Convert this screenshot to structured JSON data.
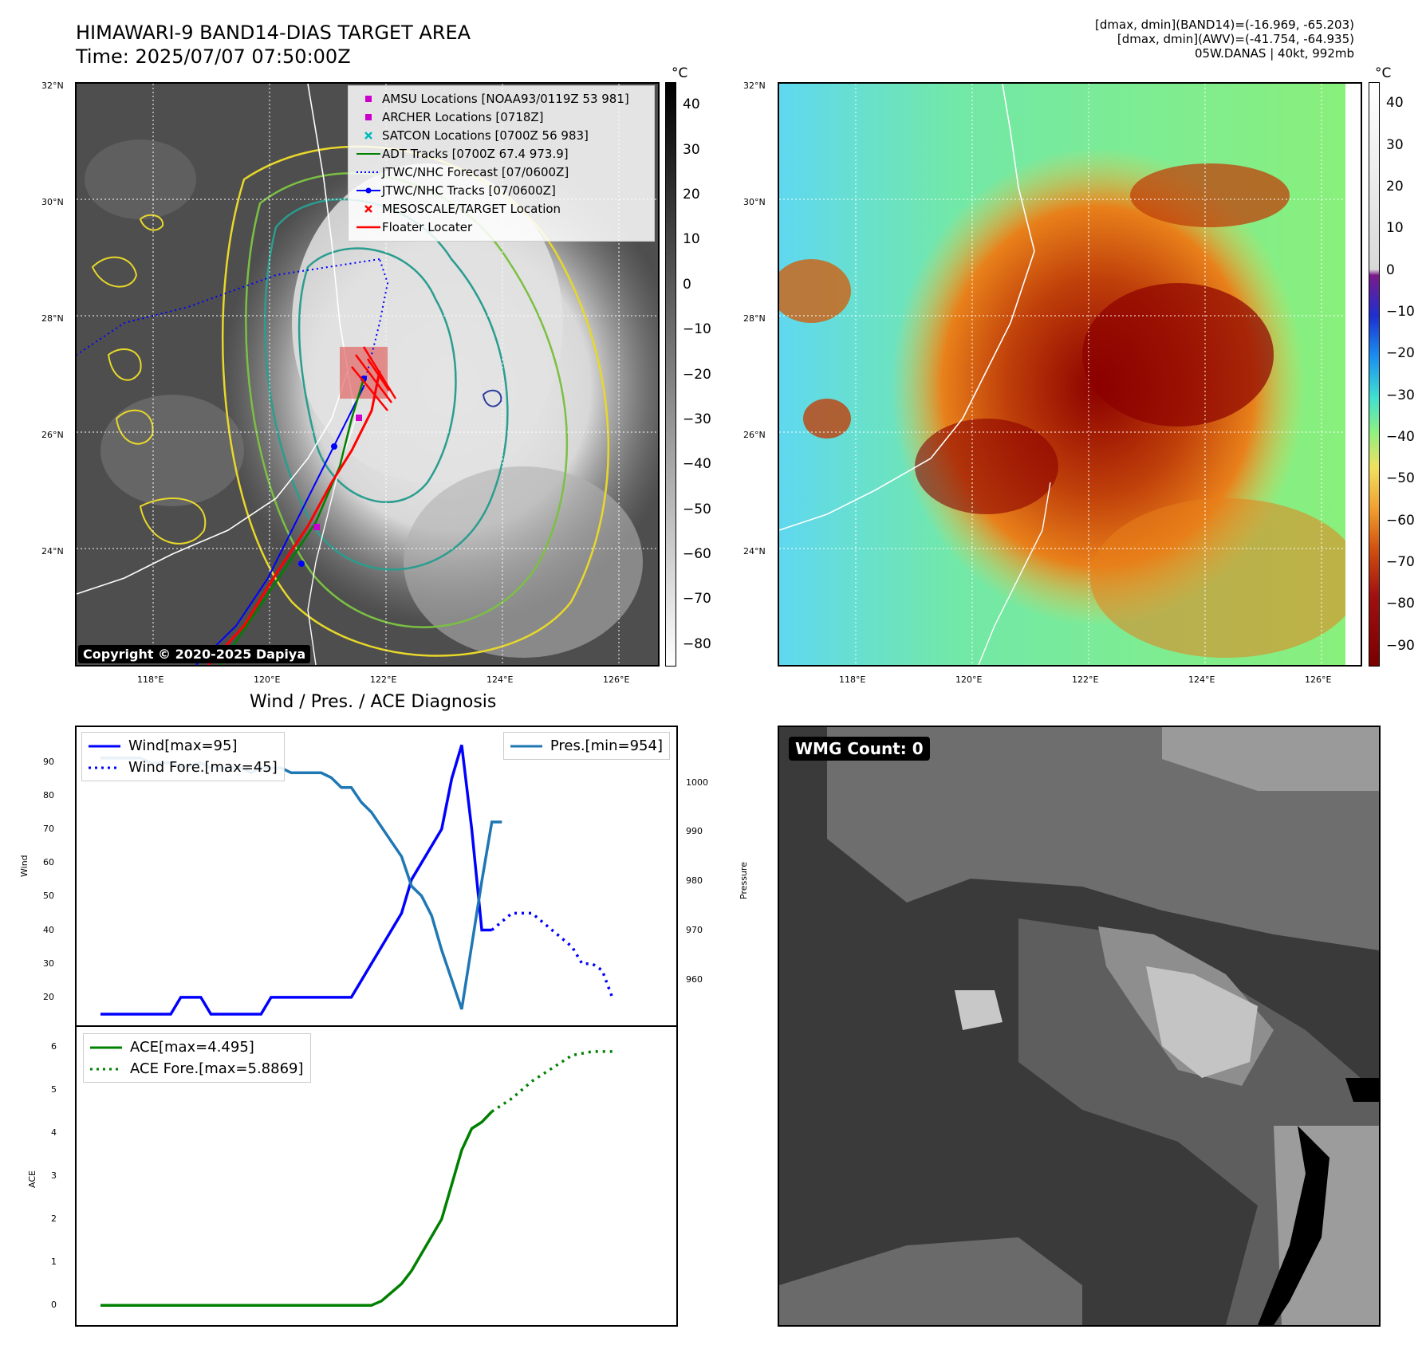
{
  "header": {
    "title_line1": "HIMAWARI-9 BAND14-DIAS TARGET AREA",
    "title_line2": "Time: 2025/07/07 07:50:00Z",
    "info_line1": "[dmax, dmin](BAND14)=(-16.969, -65.203)",
    "info_line2": "[dmax, dmin](AWV)=(-41.754, -64.935)",
    "info_line3": "05W.DANAS | 40kt, 992mb"
  },
  "map_panel_left": {
    "lat_ticks": [
      "32°N",
      "30°N",
      "28°N",
      "26°N",
      "24°N"
    ],
    "lon_ticks": [
      "118°E",
      "120°E",
      "122°E",
      "124°E",
      "126°E"
    ],
    "colorbar_unit": "°C",
    "colorbar_ticks": [
      "40",
      "30",
      "20",
      "10",
      "0",
      "−10",
      "−20",
      "−30",
      "−40",
      "−50",
      "−60",
      "−70",
      "−80"
    ],
    "copyright": "Copyright © 2020-2025 Dapiya",
    "legend": [
      {
        "label": "AMSU Locations [NOAA93/0119Z 53 981]",
        "icon": "magenta-square",
        "color": "#cc00cc"
      },
      {
        "label": "ARCHER Locations [0718Z]",
        "icon": "magenta-square",
        "color": "#cc00cc"
      },
      {
        "label": "SATCON Locations [0700Z 56 983]",
        "icon": "cyan-x",
        "color": "#00bbbb"
      },
      {
        "label": "ADT Tracks [0700Z 67.4 973.9]",
        "icon": "green-line",
        "color": "#008000"
      },
      {
        "label": "JTWC/NHC Forecast [07/0600Z]",
        "icon": "blue-dotted-line",
        "color": "#0000ff"
      },
      {
        "label": "JTWC/NHC Tracks [07/0600Z]",
        "icon": "blue-line-dot",
        "color": "#0000ff"
      },
      {
        "label": "MESOSCALE/TARGET Location",
        "icon": "red-x",
        "color": "#ff0000"
      },
      {
        "label": "Floater Locater",
        "icon": "red-line",
        "color": "#ff0000"
      }
    ]
  },
  "map_panel_right": {
    "lat_ticks": [
      "32°N",
      "30°N",
      "28°N",
      "26°N",
      "24°N"
    ],
    "lon_ticks": [
      "118°E",
      "120°E",
      "122°E",
      "124°E",
      "126°E"
    ],
    "colorbar_unit": "°C",
    "colorbar_ticks": [
      "40",
      "30",
      "20",
      "10",
      "0",
      "−10",
      "−20",
      "−30",
      "−40",
      "−50",
      "−60",
      "−70",
      "−80",
      "−90"
    ]
  },
  "chart_data": [
    {
      "type": "line",
      "title": "Wind / Pres. / ACE Diagnosis",
      "ylabel": "Wind",
      "ylabel_right": "Pressure",
      "ylim": [
        15,
        97
      ],
      "ylim_right": [
        953,
        1009
      ],
      "yticks": [
        "90",
        "80",
        "70",
        "60",
        "50",
        "40",
        "30",
        "20"
      ],
      "yticks_right": [
        "1000",
        "990",
        "980",
        "970",
        "960"
      ],
      "x": [
        0,
        1,
        2,
        3,
        4,
        5,
        6,
        7,
        8,
        9,
        10,
        11,
        12,
        13,
        14,
        15,
        16,
        17,
        18,
        19,
        20,
        21,
        22,
        23,
        24,
        25,
        26,
        27,
        28,
        29,
        30,
        31,
        32,
        33,
        34,
        35,
        36,
        37,
        38,
        39,
        40,
        41,
        42,
        43,
        44,
        45,
        46,
        47,
        48,
        49,
        50,
        51,
        52,
        53,
        54,
        55
      ],
      "series": [
        {
          "name": "Wind[max=95]",
          "color": "#0000ff",
          "style": "solid",
          "points": [
            [
              0,
              15
            ],
            [
              7,
              15
            ],
            [
              8,
              20
            ],
            [
              10,
              20
            ],
            [
              11,
              15
            ],
            [
              16,
              15
            ],
            [
              17,
              20
            ],
            [
              25,
              20
            ],
            [
              28,
              35
            ],
            [
              30,
              45
            ],
            [
              31,
              55
            ],
            [
              33,
              65
            ],
            [
              34,
              70
            ],
            [
              35,
              85
            ],
            [
              36,
              95
            ],
            [
              37,
              70
            ],
            [
              38,
              40
            ],
            [
              39,
              40
            ]
          ]
        },
        {
          "name": "Wind Fore.[max=45]",
          "color": "#0000ff",
          "style": "dotted",
          "points": [
            [
              39,
              40
            ],
            [
              41,
              45
            ],
            [
              43,
              45
            ],
            [
              45,
              40
            ],
            [
              47,
              35
            ],
            [
              48,
              30
            ],
            [
              49,
              30
            ],
            [
              50,
              28
            ],
            [
              51,
              20
            ]
          ]
        },
        {
          "name": "Pres.[min=954]",
          "color": "#1f77b4",
          "style": "solid",
          "axis": "right",
          "points": [
            [
              0,
              1005
            ],
            [
              4,
              1005
            ],
            [
              5,
              1004
            ],
            [
              7,
              1004
            ],
            [
              8,
              1003
            ],
            [
              10,
              1004
            ],
            [
              11,
              1003
            ],
            [
              14,
              1003
            ],
            [
              15,
              1002
            ],
            [
              16,
              1003
            ],
            [
              18,
              1003
            ],
            [
              19,
              1002
            ],
            [
              20,
              1002
            ],
            [
              22,
              1002
            ],
            [
              23,
              1001
            ],
            [
              24,
              999
            ],
            [
              25,
              999
            ],
            [
              26,
              996
            ],
            [
              27,
              994
            ],
            [
              28,
              991
            ],
            [
              29,
              988
            ],
            [
              30,
              985
            ],
            [
              31,
              979
            ],
            [
              32,
              977
            ],
            [
              33,
              973
            ],
            [
              34,
              966
            ],
            [
              35,
              960
            ],
            [
              36,
              954
            ],
            [
              37,
              967
            ],
            [
              38,
              980
            ],
            [
              39,
              992
            ],
            [
              40,
              992
            ]
          ]
        }
      ]
    },
    {
      "type": "line",
      "ylabel": "ACE",
      "ylim": [
        -0.2,
        6.2
      ],
      "yticks": [
        "6",
        "5",
        "4",
        "3",
        "2",
        "1",
        "0"
      ],
      "series": [
        {
          "name": "ACE[max=4.495]",
          "color": "#008000",
          "style": "solid",
          "points": [
            [
              0,
              0
            ],
            [
              27,
              0
            ],
            [
              28,
              0.1
            ],
            [
              29,
              0.3
            ],
            [
              30,
              0.5
            ],
            [
              31,
              0.8
            ],
            [
              32,
              1.2
            ],
            [
              33,
              1.6
            ],
            [
              34,
              2.0
            ],
            [
              35,
              2.8
            ],
            [
              36,
              3.6
            ],
            [
              37,
              4.1
            ],
            [
              38,
              4.25
            ],
            [
              39,
              4.495
            ]
          ]
        },
        {
          "name": "ACE Fore.[max=5.8869]",
          "color": "#008000",
          "style": "dotted",
          "points": [
            [
              39,
              4.495
            ],
            [
              41,
              4.8
            ],
            [
              43,
              5.2
            ],
            [
              45,
              5.5
            ],
            [
              47,
              5.8
            ],
            [
              49,
              5.8869
            ],
            [
              51,
              5.8869
            ]
          ]
        }
      ]
    }
  ],
  "wmg_panel": {
    "badge": "WMG Count: 0"
  }
}
